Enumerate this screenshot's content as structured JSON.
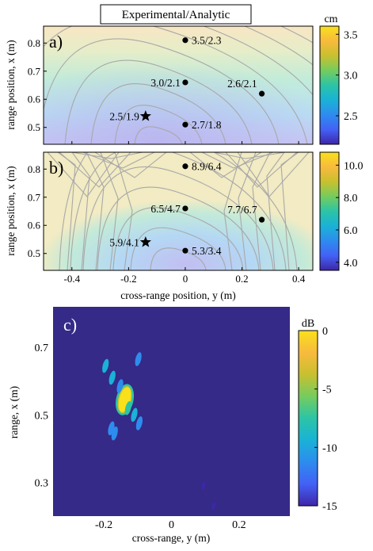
{
  "header_title": "Experimental/Analytic",
  "chart_data": [
    {
      "type": "heatmap",
      "panel_label": "a)",
      "ylabel": "range position, x (m)",
      "xlim": [
        -0.5,
        0.45
      ],
      "ylim": [
        0.44,
        0.86
      ],
      "yticks": [
        "0.5",
        "0.6",
        "0.7",
        "0.8"
      ],
      "colorbar_unit": "cm",
      "colorbar_range": [
        2.15,
        3.6
      ],
      "colorbar_ticks": [
        "2.5",
        "3.0",
        "3.5"
      ],
      "colormap": [
        "#3e26a8",
        "#4361f6",
        "#2d8cee",
        "#1ab2d6",
        "#2cc4a6",
        "#75cc5e",
        "#c8c02f",
        "#f8ba3d",
        "#f9e01c"
      ],
      "points": [
        {
          "x": 0.0,
          "y": 0.81,
          "label": "3.5/2.3",
          "marker": "dot"
        },
        {
          "x": 0.0,
          "y": 0.66,
          "label": "3.0/2.1",
          "marker": "dot"
        },
        {
          "x": 0.27,
          "y": 0.62,
          "label": "2.6/2.1",
          "marker": "dot"
        },
        {
          "x": -0.14,
          "y": 0.54,
          "label": "2.5/1.9",
          "marker": "star"
        },
        {
          "x": 0.0,
          "y": 0.51,
          "label": "2.7/1.8",
          "marker": "dot"
        }
      ]
    },
    {
      "type": "heatmap",
      "panel_label": "b)",
      "xlabel": "cross-range position, y (m)",
      "ylabel": "range position, x (m)",
      "xlim": [
        -0.5,
        0.45
      ],
      "ylim": [
        0.44,
        0.86
      ],
      "xticks": [
        "-0.4",
        "-0.2",
        "0",
        "0.2",
        "0.4"
      ],
      "yticks": [
        "0.5",
        "0.6",
        "0.7",
        "0.8"
      ],
      "colorbar_range": [
        3.5,
        10.8
      ],
      "colorbar_ticks": [
        "4.0",
        "6.0",
        "8.0",
        "10.0"
      ],
      "colormap": [
        "#3e26a8",
        "#4361f6",
        "#2d8cee",
        "#1ab2d6",
        "#2cc4a6",
        "#75cc5e",
        "#c8c02f",
        "#f8ba3d",
        "#f9e01c"
      ],
      "points": [
        {
          "x": 0.0,
          "y": 0.81,
          "label": "8.9/6.4",
          "marker": "dot"
        },
        {
          "x": 0.0,
          "y": 0.66,
          "label": "6.5/4.7",
          "marker": "dot"
        },
        {
          "x": 0.27,
          "y": 0.62,
          "label": "7.7/6.7",
          "marker": "dot"
        },
        {
          "x": -0.14,
          "y": 0.54,
          "label": "5.9/4.1",
          "marker": "star"
        },
        {
          "x": 0.0,
          "y": 0.51,
          "label": "5.3/3.4",
          "marker": "dot"
        }
      ]
    },
    {
      "type": "heatmap",
      "panel_label": "c)",
      "xlabel": "cross-range, y (m)",
      "ylabel": "range, x (m)",
      "xlim": [
        -0.35,
        0.35
      ],
      "ylim": [
        0.2,
        0.82
      ],
      "xticks": [
        "-0.2",
        "0",
        "0.2"
      ],
      "yticks": [
        "0.3",
        "0.5",
        "0.7"
      ],
      "colorbar_unit": "dB",
      "colorbar_range": [
        -15,
        0
      ],
      "colorbar_ticks": [
        "0",
        "-5",
        "-10",
        "-15"
      ],
      "background_color": "#352a87",
      "blobs": [
        {
          "x": -0.138,
          "y": 0.545,
          "level_db": 0
        },
        {
          "x": -0.128,
          "y": 0.52,
          "level_db": -3
        },
        {
          "x": -0.195,
          "y": 0.645,
          "level_db": -7
        },
        {
          "x": -0.175,
          "y": 0.61,
          "level_db": -8
        },
        {
          "x": -0.152,
          "y": 0.585,
          "level_db": -9
        },
        {
          "x": -0.098,
          "y": 0.665,
          "level_db": -10
        },
        {
          "x": -0.11,
          "y": 0.5,
          "level_db": -8
        },
        {
          "x": -0.095,
          "y": 0.475,
          "level_db": -9
        },
        {
          "x": -0.168,
          "y": 0.445,
          "level_db": -10
        },
        {
          "x": -0.178,
          "y": 0.46,
          "level_db": -11
        },
        {
          "x": 0.095,
          "y": 0.29,
          "level_db": -13
        },
        {
          "x": 0.125,
          "y": 0.23,
          "level_db": -13
        }
      ]
    }
  ]
}
